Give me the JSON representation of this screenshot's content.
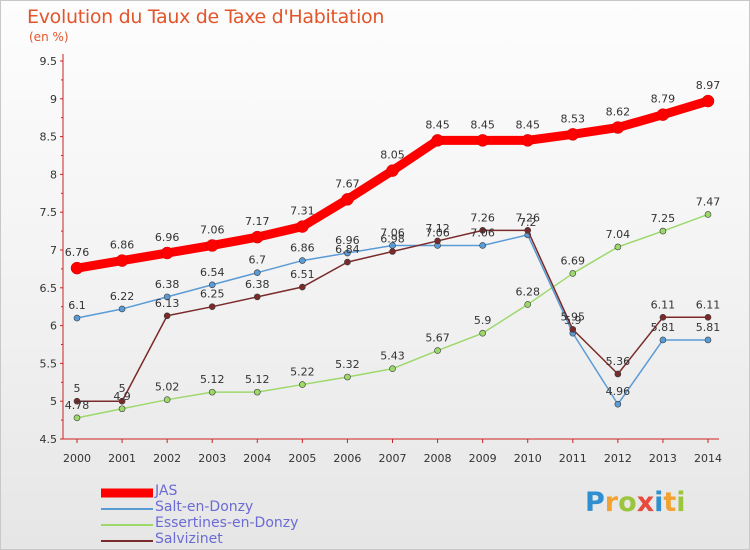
{
  "title": "Evolution du Taux de Taxe d'Habitation",
  "subtitle": "(en %)",
  "brand": {
    "text": "Proxiti"
  },
  "chart_data": {
    "type": "line",
    "x": [
      "2000",
      "2001",
      "2002",
      "2003",
      "2004",
      "2005",
      "2006",
      "2007",
      "2008",
      "2009",
      "2010",
      "2011",
      "2012",
      "2013",
      "2014"
    ],
    "ylim": [
      4.5,
      9.5
    ],
    "yticks": [
      "4.5",
      "5",
      "5.5",
      "6",
      "6.5",
      "7",
      "7.5",
      "8",
      "8.5",
      "9",
      "9.5"
    ],
    "grid": false,
    "legend_position": "bottom-left",
    "series": [
      {
        "name": "JAS",
        "color": "#ff0000",
        "width": 9,
        "marker": 6,
        "values": [
          6.76,
          6.86,
          6.96,
          7.06,
          7.17,
          7.31,
          7.67,
          8.05,
          8.45,
          8.45,
          8.45,
          8.53,
          8.62,
          8.79,
          8.97
        ],
        "labels": [
          "6.76",
          "6.86",
          "6.96",
          "7.06",
          "7.17",
          "7.31",
          "7.67",
          "8.05",
          "8.45",
          "8.45",
          "8.45",
          "8.53",
          "8.62",
          "8.79",
          "8.97"
        ]
      },
      {
        "name": "Salt-en-Donzy",
        "color": "#5b9bd5",
        "width": 1.5,
        "marker": 3,
        "values": [
          6.1,
          6.22,
          6.38,
          6.54,
          6.7,
          6.86,
          6.96,
          7.06,
          7.06,
          7.06,
          7.2,
          5.9,
          4.96,
          5.81,
          5.81
        ],
        "labels": [
          "6.1",
          "6.22",
          "6.38",
          "6.54",
          "6.7",
          "6.86",
          "6.96",
          "7.06",
          "7.06",
          "7.06",
          "7.2",
          "5.9",
          "4.96",
          "5.81",
          "5.81"
        ]
      },
      {
        "name": "Essertines-en-Donzy",
        "color": "#9dd86b",
        "width": 1.5,
        "marker": 3,
        "values": [
          4.78,
          4.9,
          5.02,
          5.12,
          5.12,
          5.22,
          5.32,
          5.43,
          5.67,
          5.9,
          6.28,
          6.69,
          7.04,
          7.25,
          7.47
        ],
        "labels": [
          "4.78",
          "4.9",
          "5.02",
          "5.12",
          "5.12",
          "5.22",
          "5.32",
          "5.43",
          "5.67",
          "5.9",
          "6.28",
          "6.69",
          "7.04",
          "7.25",
          "7.47"
        ]
      },
      {
        "name": "Salvizinet",
        "color": "#7a2a2a",
        "width": 1.5,
        "marker": 3,
        "values": [
          5,
          5,
          6.13,
          6.25,
          6.38,
          6.51,
          6.84,
          6.98,
          7.12,
          7.26,
          7.26,
          5.95,
          5.36,
          6.11,
          6.11
        ],
        "labels": [
          "5",
          "5",
          "6.13",
          "6.25",
          "6.38",
          "6.51",
          "6.84",
          "6.98",
          "7.12",
          "7.26",
          "7.26",
          "5.95",
          "5.36",
          "6.11",
          "6.11"
        ]
      }
    ]
  }
}
